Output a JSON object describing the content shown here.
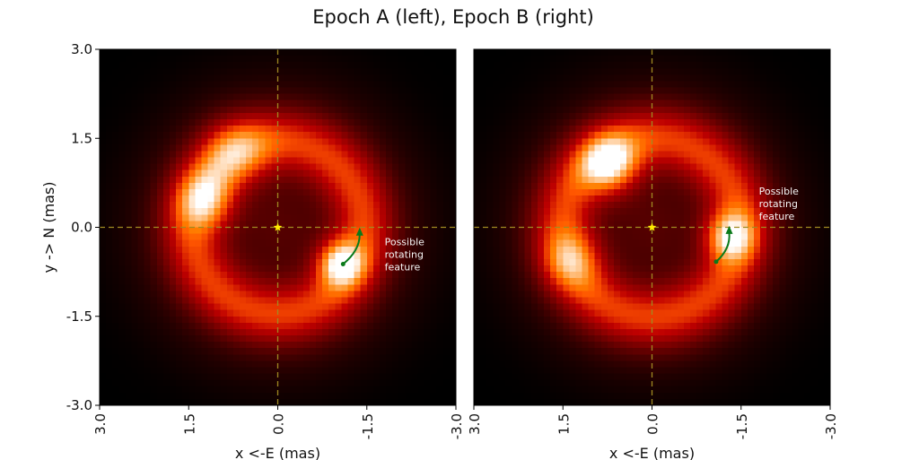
{
  "figure": {
    "title": "Epoch A (left), Epoch B (right)"
  },
  "chart_data": [
    {
      "type": "heatmap",
      "panel": "Epoch A",
      "xlabel": "x <-E (mas)",
      "ylabel": "y -> N (mas)",
      "xlim": [
        3.0,
        -3.0
      ],
      "ylim": [
        -3.0,
        3.0
      ],
      "x_ticks": [
        "3.0",
        "1.5",
        "0.0",
        "-1.5",
        "-3.0"
      ],
      "y_ticks": [
        "-3.0",
        "-1.5",
        "0.0",
        "1.5",
        "3.0"
      ],
      "x_tick_values": [
        3.0,
        1.5,
        0.0,
        -1.5,
        -3.0
      ],
      "y_tick_values": [
        -3.0,
        -1.5,
        0.0,
        1.5,
        3.0
      ],
      "colormap": "gist_heat",
      "ring": {
        "center": [
          0.0,
          0.0
        ],
        "radius": 1.45,
        "width": 0.55
      },
      "hotspots": [
        {
          "x": -1.05,
          "y": -0.6,
          "peak": 1.0,
          "sigma": 0.28
        },
        {
          "x": 1.2,
          "y": 0.45,
          "peak": 0.72,
          "sigma": 0.35
        },
        {
          "x": 0.7,
          "y": 1.25,
          "peak": 0.55,
          "sigma": 0.4
        }
      ],
      "center_marker": {
        "x": 0.0,
        "y": 0.0,
        "symbol": "star",
        "color": "#ffeb00"
      },
      "crosshair_color": "#a08a22",
      "arrow": {
        "from": [
          -1.1,
          -0.62
        ],
        "to": [
          -1.38,
          -0.05
        ],
        "color": "#0a7a1a"
      },
      "annotation": {
        "text": [
          "Possible",
          "rotating",
          "feature"
        ],
        "x": -1.8,
        "y": -0.3
      }
    },
    {
      "type": "heatmap",
      "panel": "Epoch B",
      "xlabel": "x <-E (mas)",
      "ylabel": "",
      "xlim": [
        3.0,
        -3.0
      ],
      "ylim": [
        -3.0,
        3.0
      ],
      "x_ticks": [
        "3.0",
        "1.5",
        "0.0",
        "-1.5",
        "-3.0"
      ],
      "y_ticks": [],
      "x_tick_values": [
        3.0,
        1.5,
        0.0,
        -1.5,
        -3.0
      ],
      "y_tick_values": [],
      "colormap": "gist_heat",
      "ring": {
        "center": [
          0.0,
          0.0
        ],
        "radius": 1.5,
        "width": 0.55
      },
      "hotspots": [
        {
          "x": 0.7,
          "y": 1.05,
          "peak": 1.0,
          "sigma": 0.35
        },
        {
          "x": -1.3,
          "y": -0.15,
          "peak": 0.85,
          "sigma": 0.3
        },
        {
          "x": 1.35,
          "y": -0.55,
          "peak": 0.55,
          "sigma": 0.35
        }
      ],
      "center_marker": {
        "x": 0.0,
        "y": 0.0,
        "symbol": "star",
        "color": "#ffeb00"
      },
      "crosshair_color": "#a08a22",
      "arrow": {
        "from": [
          -1.08,
          -0.58
        ],
        "to": [
          -1.3,
          -0.02
        ],
        "color": "#0a7a1a"
      },
      "annotation": {
        "text": [
          "Possible",
          "rotating",
          "feature"
        ],
        "x": -1.8,
        "y": 0.55
      }
    }
  ]
}
